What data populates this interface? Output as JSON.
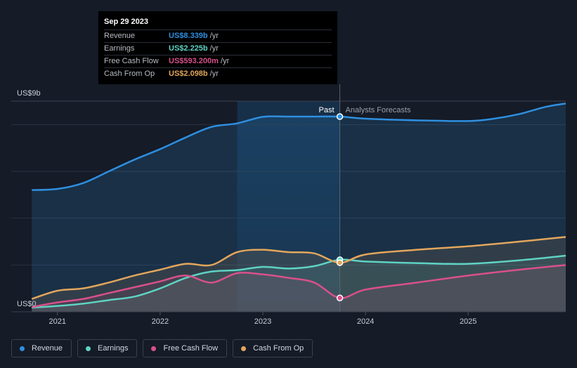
{
  "tooltip": {
    "date": "Sep 29 2023",
    "rows": [
      {
        "label": "Revenue",
        "value": "US$8.339b",
        "unit": "/yr",
        "color": "#2e8fe0"
      },
      {
        "label": "Earnings",
        "value": "US$2.225b",
        "unit": "/yr",
        "color": "#5fd3c3"
      },
      {
        "label": "Free Cash Flow",
        "value": "US$593.200m",
        "unit": "/yr",
        "color": "#d9508a"
      },
      {
        "label": "Cash From Op",
        "value": "US$2.098b",
        "unit": "/yr",
        "color": "#e3a65c"
      }
    ]
  },
  "labels": {
    "past": "Past",
    "forecast": "Analysts Forecasts",
    "y_top": "US$9b",
    "y_zero": "US$0"
  },
  "legend": [
    {
      "label": "Revenue",
      "color": "#2e8fe0"
    },
    {
      "label": "Earnings",
      "color": "#5fd3c3"
    },
    {
      "label": "Free Cash Flow",
      "color": "#d9508a"
    },
    {
      "label": "Cash From Op",
      "color": "#e3a65c"
    }
  ],
  "chart_data": {
    "type": "area",
    "ylim": [
      0,
      9
    ],
    "y_unit": "US$ billions",
    "x_ticks": [
      "2021",
      "2022",
      "2023",
      "2024",
      "2025"
    ],
    "x_tick_values": [
      2021.0,
      2022.0,
      2023.0,
      2024.0,
      2025.0
    ],
    "xlim": [
      2020.55,
      2025.95
    ],
    "past_end": 2023.75,
    "highlight_start": 2022.75,
    "series": [
      {
        "name": "Revenue",
        "color": "#2e8fe0",
        "points": [
          [
            2020.75,
            5.2
          ],
          [
            2021.0,
            5.25
          ],
          [
            2021.25,
            5.5
          ],
          [
            2021.5,
            6.0
          ],
          [
            2021.75,
            6.5
          ],
          [
            2022.0,
            6.95
          ],
          [
            2022.25,
            7.45
          ],
          [
            2022.5,
            7.9
          ],
          [
            2022.75,
            8.05
          ],
          [
            2023.0,
            8.33
          ],
          [
            2023.25,
            8.34
          ],
          [
            2023.5,
            8.34
          ],
          [
            2023.75,
            8.339
          ],
          [
            2024.0,
            8.25
          ],
          [
            2024.5,
            8.18
          ],
          [
            2025.0,
            8.15
          ],
          [
            2025.25,
            8.25
          ],
          [
            2025.5,
            8.45
          ],
          [
            2025.75,
            8.75
          ],
          [
            2025.95,
            8.9
          ]
        ]
      },
      {
        "name": "Earnings",
        "color": "#5fd3c3",
        "points": [
          [
            2020.75,
            0.18
          ],
          [
            2021.0,
            0.25
          ],
          [
            2021.25,
            0.35
          ],
          [
            2021.5,
            0.5
          ],
          [
            2021.75,
            0.65
          ],
          [
            2022.0,
            1.0
          ],
          [
            2022.25,
            1.45
          ],
          [
            2022.5,
            1.72
          ],
          [
            2022.75,
            1.78
          ],
          [
            2023.0,
            1.92
          ],
          [
            2023.25,
            1.85
          ],
          [
            2023.5,
            1.95
          ],
          [
            2023.75,
            2.225
          ],
          [
            2024.0,
            2.15
          ],
          [
            2024.5,
            2.08
          ],
          [
            2025.0,
            2.05
          ],
          [
            2025.5,
            2.2
          ],
          [
            2025.95,
            2.4
          ]
        ]
      },
      {
        "name": "Free Cash Flow",
        "color": "#d9508a",
        "points": [
          [
            2020.75,
            0.2
          ],
          [
            2021.0,
            0.4
          ],
          [
            2021.25,
            0.55
          ],
          [
            2021.5,
            0.8
          ],
          [
            2021.75,
            1.05
          ],
          [
            2022.0,
            1.3
          ],
          [
            2022.25,
            1.55
          ],
          [
            2022.5,
            1.25
          ],
          [
            2022.75,
            1.65
          ],
          [
            2023.0,
            1.6
          ],
          [
            2023.25,
            1.45
          ],
          [
            2023.5,
            1.25
          ],
          [
            2023.75,
            0.5932
          ],
          [
            2024.0,
            0.95
          ],
          [
            2024.5,
            1.25
          ],
          [
            2025.0,
            1.55
          ],
          [
            2025.5,
            1.8
          ],
          [
            2025.95,
            2.0
          ]
        ]
      },
      {
        "name": "Cash From Op",
        "color": "#e3a65c",
        "points": [
          [
            2020.75,
            0.55
          ],
          [
            2021.0,
            0.9
          ],
          [
            2021.25,
            1.0
          ],
          [
            2021.5,
            1.25
          ],
          [
            2021.75,
            1.55
          ],
          [
            2022.0,
            1.8
          ],
          [
            2022.25,
            2.05
          ],
          [
            2022.5,
            2.0
          ],
          [
            2022.75,
            2.55
          ],
          [
            2023.0,
            2.65
          ],
          [
            2023.25,
            2.55
          ],
          [
            2023.5,
            2.5
          ],
          [
            2023.75,
            2.098
          ],
          [
            2024.0,
            2.45
          ],
          [
            2024.5,
            2.65
          ],
          [
            2025.0,
            2.8
          ],
          [
            2025.5,
            3.0
          ],
          [
            2025.95,
            3.2
          ]
        ]
      }
    ]
  }
}
